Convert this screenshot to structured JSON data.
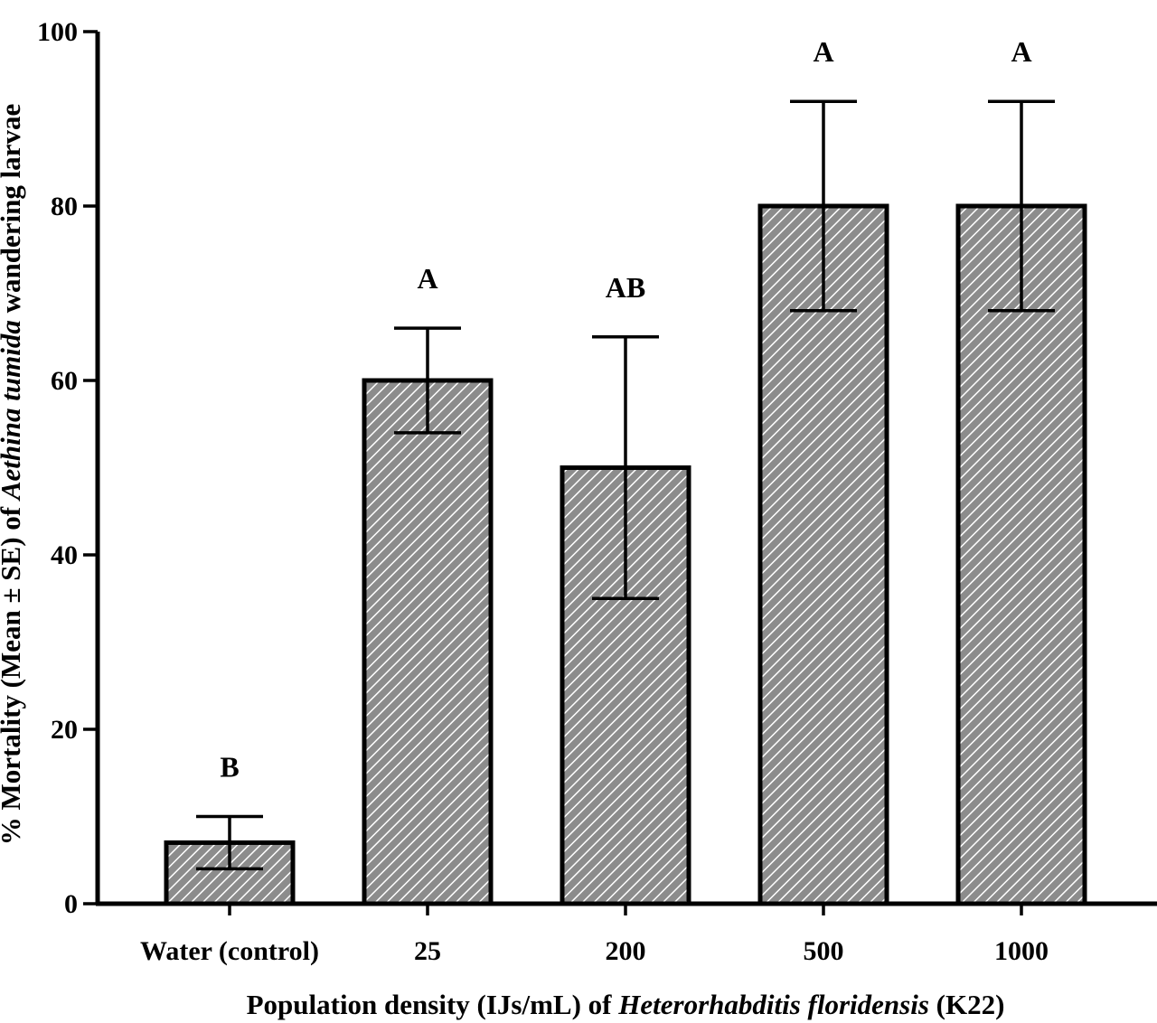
{
  "chart_data": {
    "type": "bar",
    "categories": [
      "Water (control)",
      "25",
      "200",
      "500",
      "1000"
    ],
    "values": [
      7,
      60,
      50,
      80,
      80
    ],
    "errors": [
      3,
      6,
      15,
      12,
      12
    ],
    "significance": [
      "B",
      "A",
      "AB",
      "A",
      "A"
    ],
    "ylim": [
      0,
      100
    ],
    "yticks": [
      "0",
      "20",
      "40",
      "60",
      "80",
      "100"
    ],
    "ytick_values": [
      0,
      20,
      40,
      60,
      80,
      100
    ],
    "ylabel": {
      "pre": "% Mortality (Mean ± SE) of ",
      "italic": "Aethina tumida",
      "post": " wandering larvae"
    },
    "xlabel": {
      "pre": "Population density (IJs/mL) of ",
      "italic": "Heterorhabditis floridensis",
      "post": " (K22)"
    },
    "colors": {
      "bar_fill": "#8c8c8c",
      "hatch": "#ffffff",
      "stroke": "#000000"
    }
  }
}
